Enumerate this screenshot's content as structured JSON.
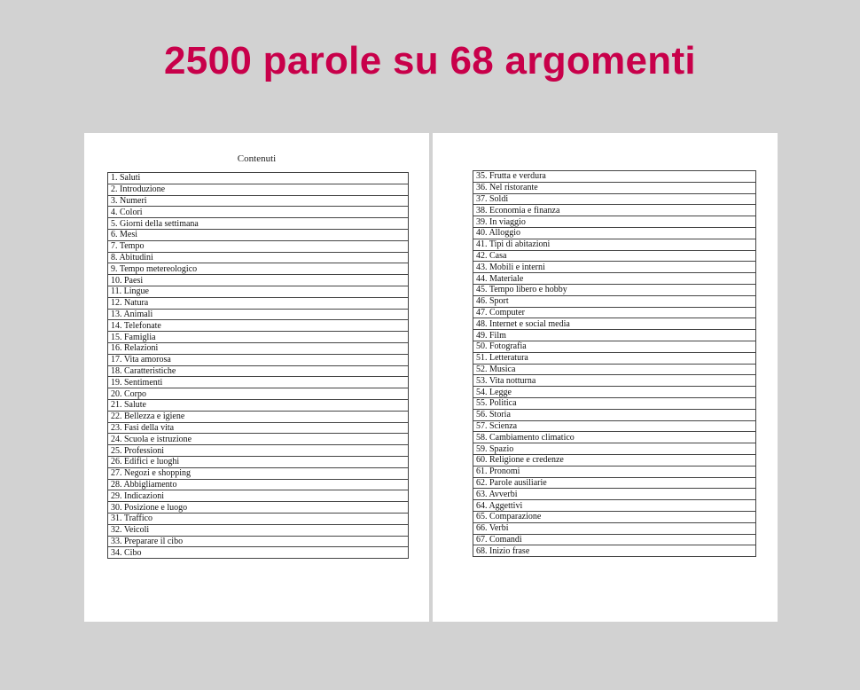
{
  "title": "2500 parole su 68 argomenti",
  "colors": {
    "title": "#c8004a",
    "background": "#d2d2d2",
    "page": "#ffffff"
  },
  "left_page": {
    "heading": "Contenuti",
    "items": [
      "1. Saluti",
      "2. Introduzione",
      "3. Numeri",
      "4. Colori",
      "5. Giorni della settimana",
      "6. Mesi",
      "7. Tempo",
      "8. Abitudini",
      "9. Tempo metereologico",
      "10. Paesi",
      "11. Lingue",
      "12. Natura",
      "13. Animali",
      "14. Telefonate",
      "15. Famiglia",
      "16. Relazioni",
      "17. Vita amorosa",
      "18. Caratteristiche",
      "19. Sentimenti",
      "20. Corpo",
      "21. Salute",
      "22. Bellezza e igiene",
      "23. Fasi della vita",
      "24. Scuola e istruzione",
      "25. Professioni",
      "26. Edifici e luoghi",
      "27. Negozi e shopping",
      "28. Abbigliamento",
      "29. Indicazioni",
      "30. Posizione e luogo",
      "31. Traffico",
      "32. Veicoli",
      "33. Preparare il cibo",
      "34. Cibo"
    ]
  },
  "right_page": {
    "items": [
      "35. Frutta e verdura",
      "36. Nel ristorante",
      "37. Soldi",
      "38. Economia e finanza",
      "39. In viaggio",
      "40. Alloggio",
      "41. Tipi di abitazioni",
      "42. Casa",
      "43. Mobili e interni",
      "44. Materiale",
      "45. Tempo libero e hobby",
      "46. Sport",
      "47. Computer",
      "48. Internet e social media",
      "49. Film",
      "50. Fotografia",
      "51. Letteratura",
      "52. Musica",
      "53. Vita notturna",
      "54. Legge",
      "55. Politica",
      "56. Storia",
      "57. Scienza",
      "58. Cambiamento climatico",
      "59. Spazio",
      "60. Religione e credenze",
      "61. Pronomi",
      "62. Parole ausiliarie",
      "63. Avverbi",
      "64. Aggettivi",
      "65. Comparazione",
      "66. Verbi",
      "67. Comandi",
      "68. Inizio frase"
    ]
  }
}
